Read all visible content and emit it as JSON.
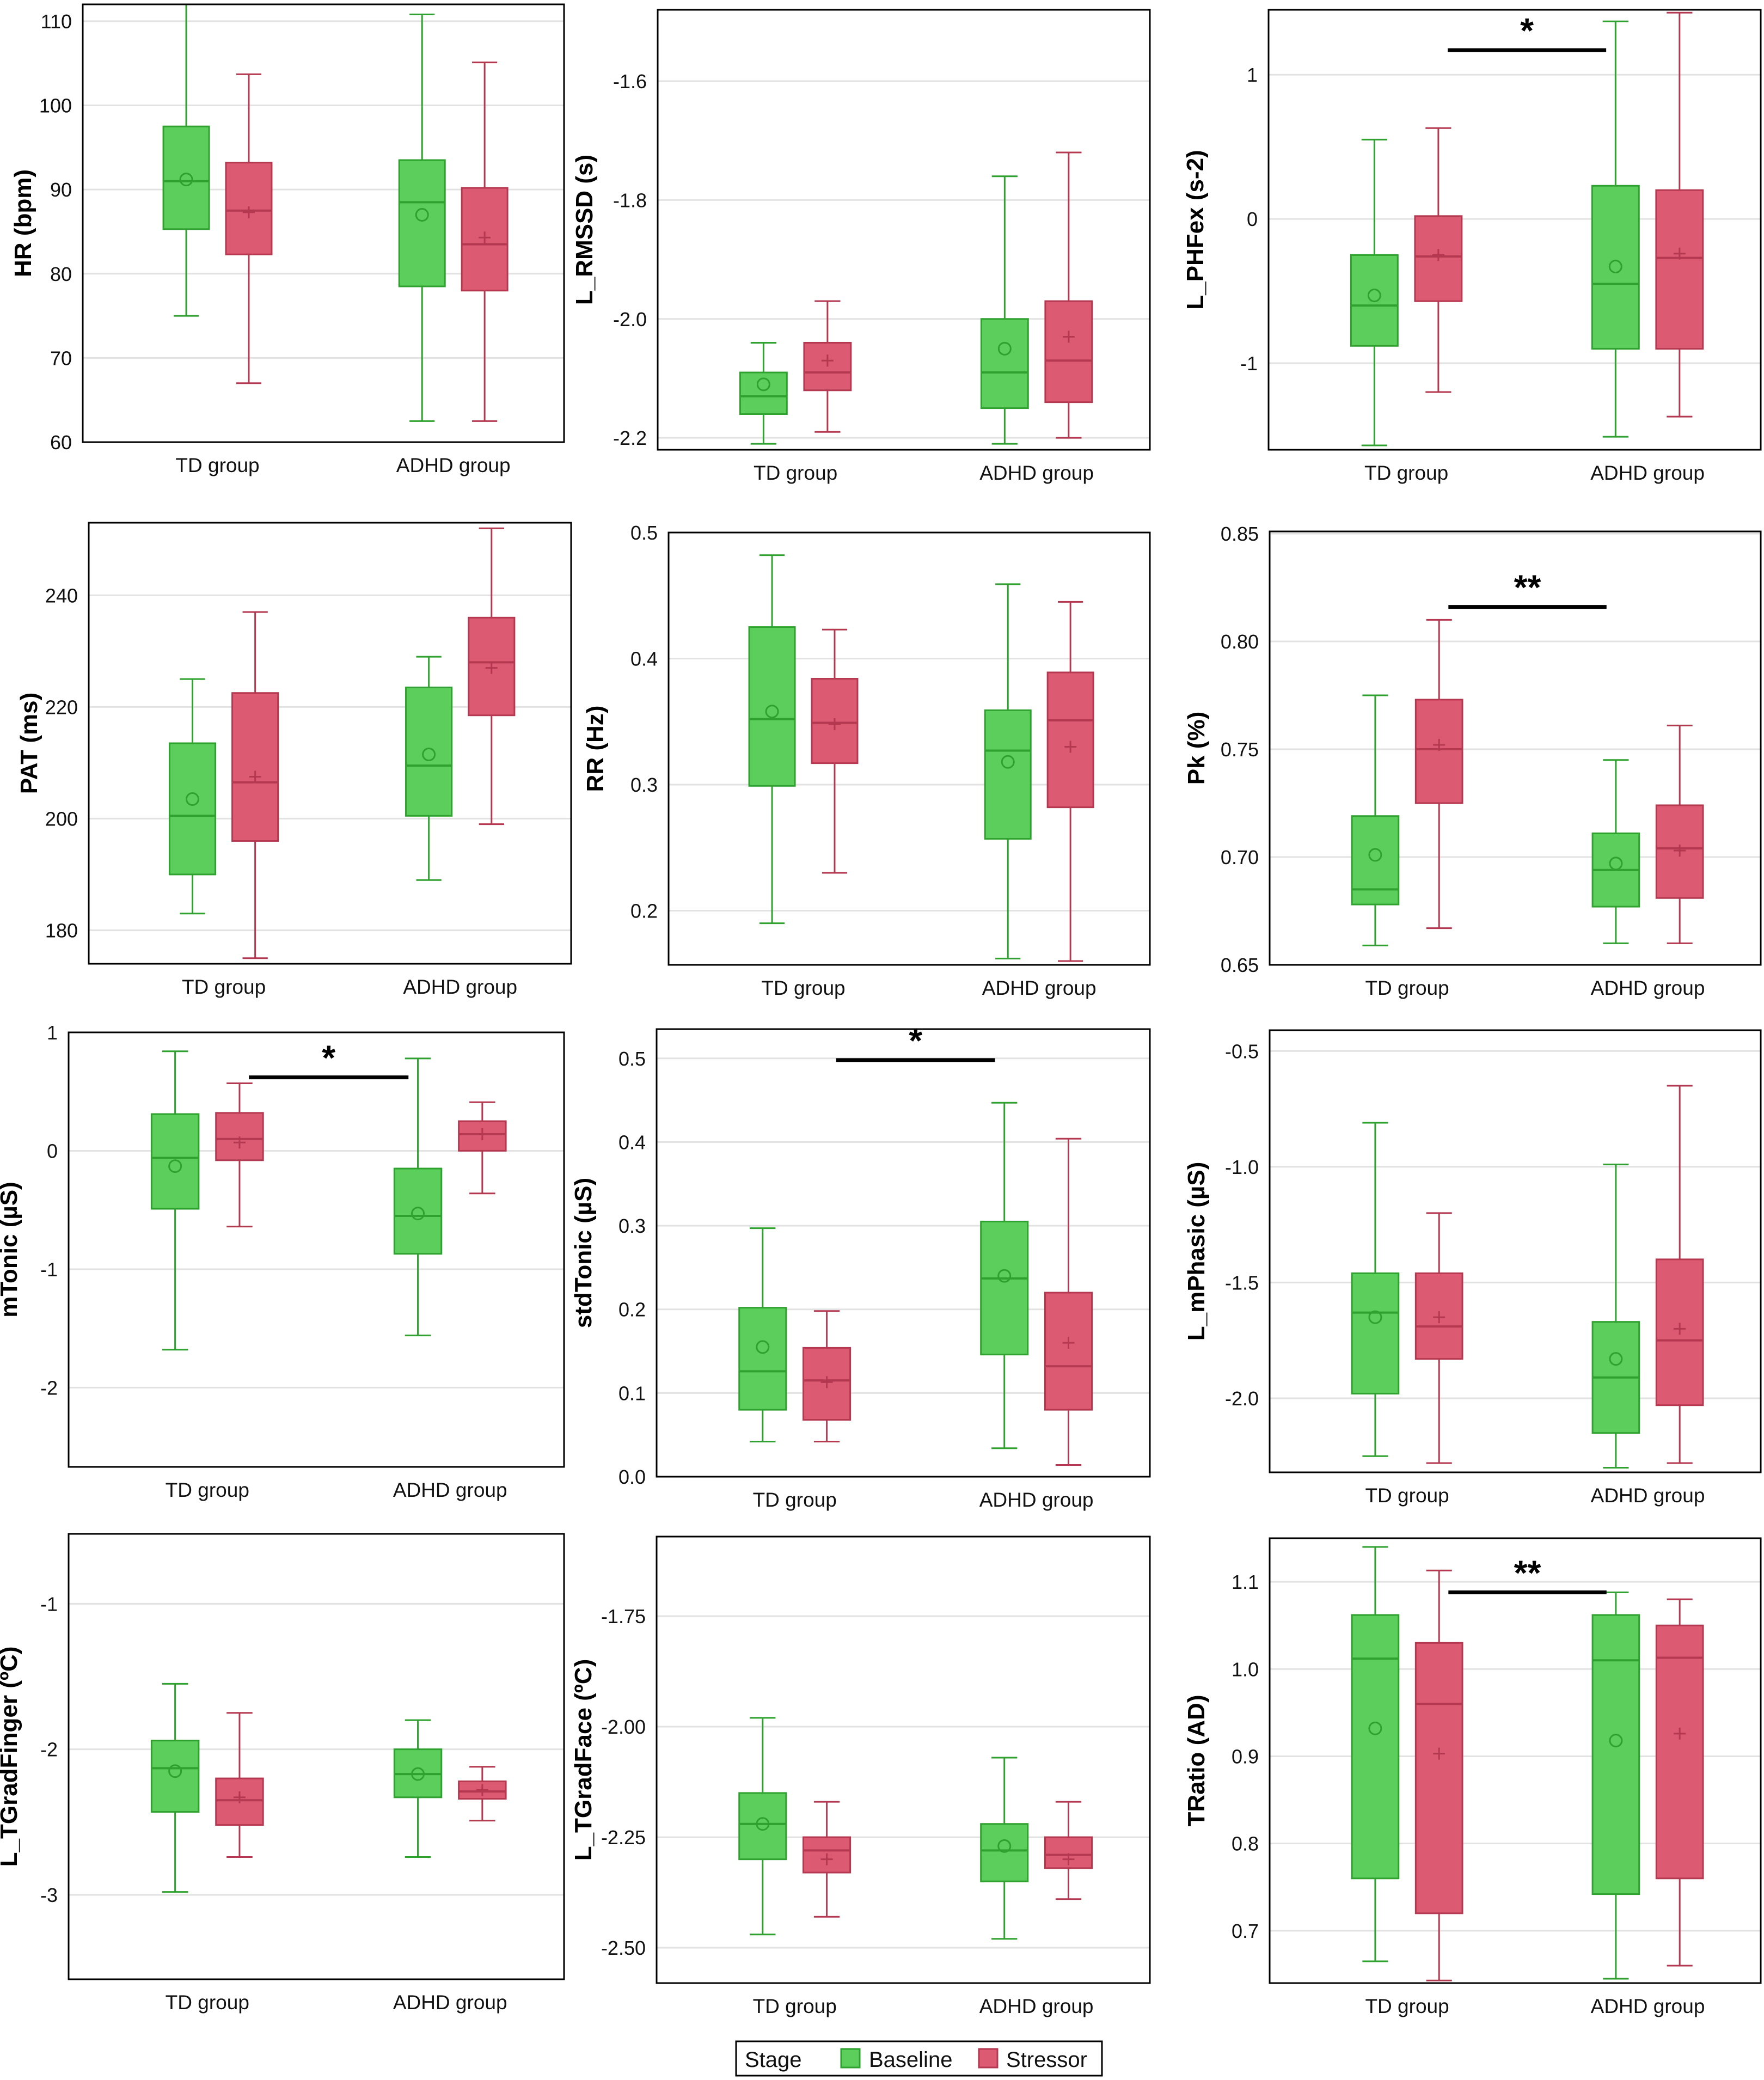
{
  "colors": {
    "baseline_fill": "#5bce5b",
    "baseline_line": "#2fa12f",
    "stressor_fill": "#dc5a72",
    "stressor_line": "#b43850",
    "grid": "#e2e2e2",
    "frame": "#000000"
  },
  "legend": {
    "title": "Stage",
    "entries": [
      "Baseline",
      "Stressor"
    ]
  },
  "chart_data": [
    {
      "type": "boxplot",
      "ylabel": "HR (bpm)",
      "categories": [
        "TD group",
        "ADHD group"
      ],
      "ylim": [
        60,
        112
      ],
      "yticks": [
        60,
        70,
        80,
        90,
        100,
        110
      ],
      "decimals": 0,
      "series": [
        {
          "name": "Baseline",
          "boxes": [
            {
              "min": 75,
              "q1": 85.3,
              "median": 91,
              "q3": 97.5,
              "max": 112,
              "mean": 91.2
            },
            {
              "min": 62.5,
              "q1": 78.5,
              "median": 88.5,
              "q3": 93.5,
              "max": 110.8,
              "mean": 87
            }
          ]
        },
        {
          "name": "Stressor",
          "boxes": [
            {
              "min": 67,
              "q1": 82.3,
              "median": 87.5,
              "q3": 93.2,
              "max": 103.7,
              "mean": 87.3
            },
            {
              "min": 62.5,
              "q1": 78,
              "median": 83.5,
              "q3": 90.2,
              "max": 105.1,
              "mean": 84.3
            }
          ]
        }
      ],
      "annotation": null
    },
    {
      "type": "boxplot",
      "ylabel": "L_RMSSD (s)",
      "categories": [
        "TD group",
        "ADHD group"
      ],
      "ylim": [
        -2.22,
        -1.48
      ],
      "yticks": [
        -2.2,
        -2.0,
        -1.8,
        -1.6
      ],
      "decimals": 1,
      "series": [
        {
          "name": "Baseline",
          "boxes": [
            {
              "min": -2.21,
              "q1": -2.16,
              "median": -2.13,
              "q3": -2.09,
              "max": -2.04,
              "mean": -2.11
            },
            {
              "min": -2.21,
              "q1": -2.15,
              "median": -2.09,
              "q3": -2.0,
              "max": -1.76,
              "mean": -2.05
            }
          ]
        },
        {
          "name": "Stressor",
          "boxes": [
            {
              "min": -2.19,
              "q1": -2.12,
              "median": -2.09,
              "q3": -2.04,
              "max": -1.97,
              "mean": -2.07
            },
            {
              "min": -2.2,
              "q1": -2.14,
              "median": -2.07,
              "q3": -1.97,
              "max": -1.72,
              "mean": -2.03
            }
          ]
        }
      ],
      "annotation": null
    },
    {
      "type": "boxplot",
      "ylabel": "L_PHFex (s-2)",
      "categories": [
        "TD group",
        "ADHD group"
      ],
      "ylim": [
        -1.6,
        1.45
      ],
      "yticks": [
        -1,
        0,
        1
      ],
      "decimals": 0,
      "series": [
        {
          "name": "Baseline",
          "boxes": [
            {
              "min": -1.57,
              "q1": -0.88,
              "median": -0.6,
              "q3": -0.25,
              "max": 0.55,
              "mean": -0.53
            },
            {
              "min": -1.51,
              "q1": -0.9,
              "median": -0.45,
              "q3": 0.23,
              "max": 1.37,
              "mean": -0.33
            }
          ]
        },
        {
          "name": "Stressor",
          "boxes": [
            {
              "min": -1.2,
              "q1": -0.57,
              "median": -0.26,
              "q3": 0.02,
              "max": 0.63,
              "mean": -0.25
            },
            {
              "min": -1.37,
              "q1": -0.9,
              "median": -0.27,
              "q3": 0.2,
              "max": 1.43,
              "mean": -0.24
            }
          ]
        }
      ],
      "annotation": {
        "label": "*",
        "from": "TD group",
        "to": "ADHD group",
        "at": 1.17
      }
    },
    {
      "type": "boxplot",
      "ylabel": "PAT (ms)",
      "categories": [
        "TD group",
        "ADHD group"
      ],
      "ylim": [
        174,
        253
      ],
      "yticks": [
        180,
        200,
        220,
        240
      ],
      "decimals": 0,
      "series": [
        {
          "name": "Baseline",
          "boxes": [
            {
              "min": 183,
              "q1": 190,
              "median": 200.5,
              "q3": 213.5,
              "max": 225,
              "mean": 203.5
            },
            {
              "min": 189,
              "q1": 200.5,
              "median": 209.5,
              "q3": 223.5,
              "max": 229,
              "mean": 211.5
            }
          ]
        },
        {
          "name": "Stressor",
          "boxes": [
            {
              "min": 175,
              "q1": 196,
              "median": 206.5,
              "q3": 222.5,
              "max": 237,
              "mean": 207.5
            },
            {
              "min": 199,
              "q1": 218.5,
              "median": 228,
              "q3": 236,
              "max": 252,
              "mean": 227
            }
          ]
        }
      ],
      "annotation": null
    },
    {
      "type": "boxplot",
      "ylabel": "RR (Hz)",
      "categories": [
        "TD group",
        "ADHD group"
      ],
      "ylim": [
        0.157,
        0.5
      ],
      "yticks": [
        0.2,
        0.3,
        0.4,
        0.5
      ],
      "decimals": 1,
      "series": [
        {
          "name": "Baseline",
          "boxes": [
            {
              "min": 0.19,
              "q1": 0.299,
              "median": 0.352,
              "q3": 0.425,
              "max": 0.482,
              "mean": 0.358
            },
            {
              "min": 0.162,
              "q1": 0.257,
              "median": 0.327,
              "q3": 0.359,
              "max": 0.459,
              "mean": 0.318
            }
          ]
        },
        {
          "name": "Stressor",
          "boxes": [
            {
              "min": 0.23,
              "q1": 0.317,
              "median": 0.349,
              "q3": 0.384,
              "max": 0.423,
              "mean": 0.348
            },
            {
              "min": 0.16,
              "q1": 0.282,
              "median": 0.351,
              "q3": 0.389,
              "max": 0.445,
              "mean": 0.33
            }
          ]
        }
      ],
      "annotation": null
    },
    {
      "type": "boxplot",
      "ylabel": "Pk (%)",
      "categories": [
        "TD group",
        "ADHD group"
      ],
      "ylim": [
        0.65,
        0.851
      ],
      "yticks": [
        0.65,
        0.7,
        0.75,
        0.8,
        0.85
      ],
      "decimals": 2,
      "series": [
        {
          "name": "Baseline",
          "boxes": [
            {
              "min": 0.659,
              "q1": 0.678,
              "median": 0.685,
              "q3": 0.719,
              "max": 0.775,
              "mean": 0.701
            },
            {
              "min": 0.66,
              "q1": 0.677,
              "median": 0.694,
              "q3": 0.711,
              "max": 0.745,
              "mean": 0.697
            }
          ]
        },
        {
          "name": "Stressor",
          "boxes": [
            {
              "min": 0.667,
              "q1": 0.725,
              "median": 0.75,
              "q3": 0.773,
              "max": 0.81,
              "mean": 0.752
            },
            {
              "min": 0.66,
              "q1": 0.681,
              "median": 0.704,
              "q3": 0.724,
              "max": 0.761,
              "mean": 0.703
            }
          ]
        }
      ],
      "annotation": {
        "label": "**",
        "from": "TD group",
        "to": "ADHD group",
        "at": 0.816
      }
    },
    {
      "type": "boxplot",
      "ylabel": "mTonic (µS)",
      "categories": [
        "TD group",
        "ADHD group"
      ],
      "ylim": [
        -2.67,
        1.0
      ],
      "yticks": [
        -2,
        -1,
        0,
        1
      ],
      "decimals": 0,
      "series": [
        {
          "name": "Baseline",
          "boxes": [
            {
              "min": -1.68,
              "q1": -0.49,
              "median": -0.06,
              "q3": 0.31,
              "max": 0.84,
              "mean": -0.13
            },
            {
              "min": -1.56,
              "q1": -0.87,
              "median": -0.55,
              "q3": -0.15,
              "max": 0.78,
              "mean": -0.53
            }
          ]
        },
        {
          "name": "Stressor",
          "boxes": [
            {
              "min": -0.64,
              "q1": -0.08,
              "median": 0.1,
              "q3": 0.32,
              "max": 0.57,
              "mean": 0.07
            },
            {
              "min": -0.36,
              "q1": 0.0,
              "median": 0.14,
              "q3": 0.25,
              "max": 0.41,
              "mean": 0.14
            }
          ]
        }
      ],
      "annotation": {
        "label": "*",
        "from": "TD group",
        "to": "ADHD group",
        "at": 0.62
      }
    },
    {
      "type": "boxplot",
      "ylabel": "stdTonic (µS)",
      "categories": [
        "TD group",
        "ADHD group"
      ],
      "ylim": [
        0.0,
        0.535
      ],
      "yticks": [
        0.0,
        0.1,
        0.2,
        0.3,
        0.4,
        0.5
      ],
      "decimals": 1,
      "series": [
        {
          "name": "Baseline",
          "boxes": [
            {
              "min": 0.042,
              "q1": 0.08,
              "median": 0.126,
              "q3": 0.202,
              "max": 0.297,
              "mean": 0.155
            },
            {
              "min": 0.034,
              "q1": 0.146,
              "median": 0.237,
              "q3": 0.305,
              "max": 0.447,
              "mean": 0.24
            }
          ]
        },
        {
          "name": "Stressor",
          "boxes": [
            {
              "min": 0.042,
              "q1": 0.068,
              "median": 0.115,
              "q3": 0.154,
              "max": 0.198,
              "mean": 0.113
            },
            {
              "min": 0.014,
              "q1": 0.08,
              "median": 0.132,
              "q3": 0.22,
              "max": 0.404,
              "mean": 0.16
            }
          ]
        }
      ],
      "annotation": {
        "label": "*",
        "from": "TD group",
        "to": "ADHD group",
        "at": 0.498
      }
    },
    {
      "type": "boxplot",
      "ylabel": "L_mPhasic (µS)",
      "categories": [
        "TD group",
        "ADHD group"
      ],
      "ylim": [
        -2.32,
        -0.41
      ],
      "yticks": [
        -2.0,
        -1.5,
        -1.0,
        -0.5
      ],
      "decimals": 1,
      "series": [
        {
          "name": "Baseline",
          "boxes": [
            {
              "min": -2.25,
              "q1": -1.98,
              "median": -1.63,
              "q3": -1.46,
              "max": -0.81,
              "mean": -1.65
            },
            {
              "min": -2.3,
              "q1": -2.15,
              "median": -1.91,
              "q3": -1.67,
              "max": -0.99,
              "mean": -1.83
            }
          ]
        },
        {
          "name": "Stressor",
          "boxes": [
            {
              "min": -2.28,
              "q1": -1.83,
              "median": -1.69,
              "q3": -1.46,
              "max": -1.2,
              "mean": -1.65
            },
            {
              "min": -2.28,
              "q1": -2.03,
              "median": -1.75,
              "q3": -1.4,
              "max": -0.65,
              "mean": -1.7
            }
          ]
        }
      ],
      "annotation": null
    },
    {
      "type": "boxplot",
      "ylabel": "L_TGradFinger (ºC)",
      "categories": [
        "TD group",
        "ADHD group"
      ],
      "ylim": [
        -3.58,
        -0.52
      ],
      "yticks": [
        -3,
        -2,
        -1
      ],
      "decimals": 0,
      "series": [
        {
          "name": "Baseline",
          "boxes": [
            {
              "min": -2.98,
              "q1": -2.43,
              "median": -2.13,
              "q3": -1.94,
              "max": -1.55,
              "mean": -2.15
            },
            {
              "min": -2.74,
              "q1": -2.33,
              "median": -2.17,
              "q3": -2.0,
              "max": -1.8,
              "mean": -2.17
            }
          ]
        },
        {
          "name": "Stressor",
          "boxes": [
            {
              "min": -2.74,
              "q1": -2.52,
              "median": -2.35,
              "q3": -2.2,
              "max": -1.75,
              "mean": -2.33
            },
            {
              "min": -2.49,
              "q1": -2.34,
              "median": -2.29,
              "q3": -2.22,
              "max": -2.12,
              "mean": -2.28
            }
          ]
        }
      ],
      "annotation": null
    },
    {
      "type": "boxplot",
      "ylabel": "L_TGradFace (ºC)",
      "categories": [
        "TD group",
        "ADHD group"
      ],
      "ylim": [
        -2.58,
        -1.57
      ],
      "yticks": [
        -2.5,
        -2.25,
        -2.0,
        -1.75
      ],
      "decimals": 2,
      "series": [
        {
          "name": "Baseline",
          "boxes": [
            {
              "min": -2.47,
              "q1": -2.3,
              "median": -2.22,
              "q3": -2.15,
              "max": -1.98,
              "mean": -2.22
            },
            {
              "min": -2.48,
              "q1": -2.35,
              "median": -2.28,
              "q3": -2.22,
              "max": -2.07,
              "mean": -2.27
            }
          ]
        },
        {
          "name": "Stressor",
          "boxes": [
            {
              "min": -2.43,
              "q1": -2.33,
              "median": -2.28,
              "q3": -2.25,
              "max": -2.17,
              "mean": -2.3
            },
            {
              "min": -2.39,
              "q1": -2.32,
              "median": -2.29,
              "q3": -2.25,
              "max": -2.17,
              "mean": -2.3
            }
          ]
        }
      ],
      "annotation": null
    },
    {
      "type": "boxplot",
      "ylabel": "TRatio (AD)",
      "categories": [
        "TD group",
        "ADHD group"
      ],
      "ylim": [
        0.64,
        1.15
      ],
      "yticks": [
        0.7,
        0.8,
        0.9,
        1.0,
        1.1
      ],
      "decimals": 1,
      "series": [
        {
          "name": "Baseline",
          "boxes": [
            {
              "min": 0.665,
              "q1": 0.76,
              "median": 1.012,
              "q3": 1.062,
              "max": 1.14,
              "mean": 0.932
            },
            {
              "min": 0.645,
              "q1": 0.742,
              "median": 1.01,
              "q3": 1.062,
              "max": 1.088,
              "mean": 0.918
            }
          ]
        },
        {
          "name": "Stressor",
          "boxes": [
            {
              "min": 0.643,
              "q1": 0.72,
              "median": 0.96,
              "q3": 1.03,
              "max": 1.113,
              "mean": 0.903
            },
            {
              "min": 0.66,
              "q1": 0.76,
              "median": 1.013,
              "q3": 1.05,
              "max": 1.08,
              "mean": 0.926
            }
          ]
        }
      ],
      "annotation": {
        "label": "**",
        "from": "TD group",
        "to": "ADHD group",
        "at": 1.088
      }
    }
  ]
}
